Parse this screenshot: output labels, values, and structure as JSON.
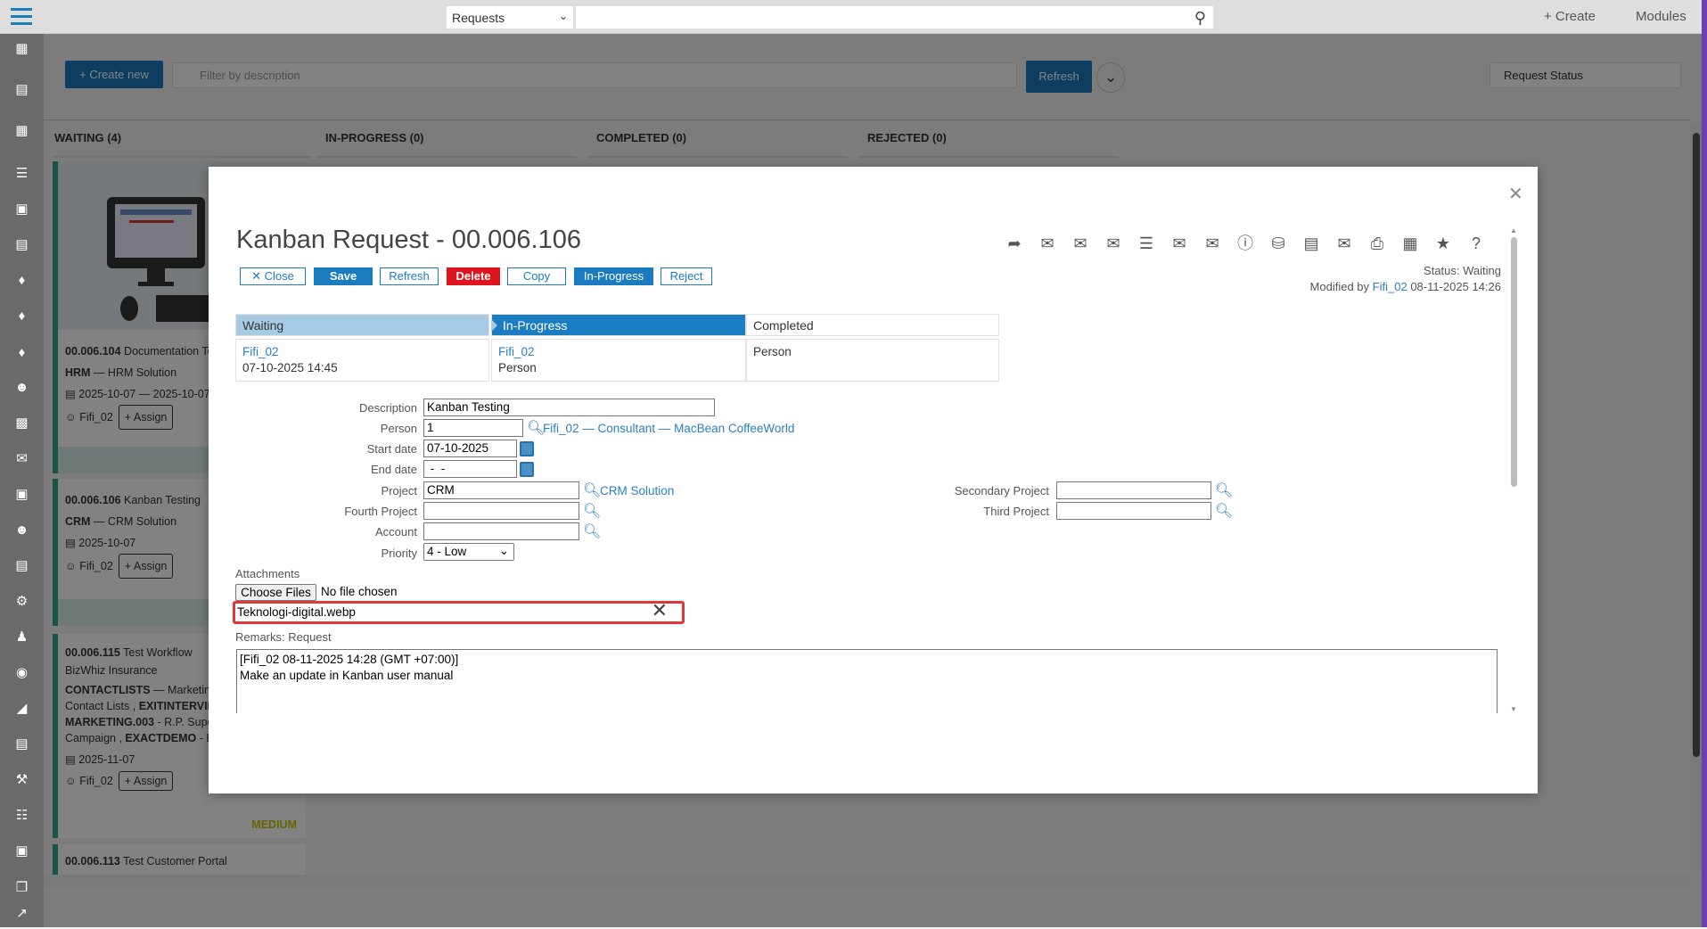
{
  "topbar": {
    "module_select": "Requests",
    "search_placeholder": "",
    "create_label": "+ Create",
    "modules_label": "Modules"
  },
  "sidebar": {
    "icons": [
      "building-icon",
      "layout-icon",
      "grid-icon",
      "checklist-icon",
      "calendar-icon",
      "list-icon",
      "puzzle-icon",
      "puzzle-icon",
      "puzzle-icon",
      "people-icon",
      "briefcase-icon",
      "mail-open-icon",
      "calendar-icon",
      "group-icon",
      "contact-card-icon",
      "gears-icon",
      "people-icon",
      "coins-icon",
      "chart-icon",
      "news-icon",
      "wrench-icon",
      "hierarchy-icon",
      "box-icon",
      "windows-icon",
      "arrow-icon"
    ]
  },
  "board": {
    "create_new": "+ Create new",
    "filter_placeholder": "Filter by description",
    "refresh": "Refresh",
    "status_filter": "Request Status",
    "columns": [
      "WAITING (4)",
      "IN-PROGRESS (0)",
      "COMPLETED (0)",
      "REJECTED (0)"
    ],
    "cards": [
      {
        "id": "00.006.104",
        "title": "Documentation Te",
        "project": "HRM",
        "project_name": "HRM Solution",
        "dates": "2025-10-07 — 2025-10-07",
        "person": "Fifi_02",
        "assign": "+ Assign"
      },
      {
        "id": "00.006.106",
        "title": "Kanban Testing",
        "project": "CRM",
        "project_name": "CRM Solution",
        "dates": "2025-10-07",
        "person": "Fifi_02",
        "assign": "+ Assign"
      },
      {
        "id": "00.006.115",
        "title": "Test Workflow",
        "account": "BizWhiz Insurance",
        "lines": [
          [
            "CONTACTLISTS",
            " — Marketing: "
          ],
          [
            "",
            "Contact Lists , "
          ],
          [
            "EXITINTERVIEW",
            ""
          ],
          [
            "MARKETING.003",
            " - R.P. Super"
          ],
          [
            "",
            "Campaign , "
          ],
          [
            "EXACTDEMO",
            " - Ex"
          ]
        ],
        "dates": "2025-11-07",
        "person": "Fifi_02",
        "assign": "+ Assign",
        "priority": "MEDIUM"
      },
      {
        "id": "00.006.113",
        "title": "Test Customer Portal"
      }
    ]
  },
  "modal": {
    "title": "Kanban Request - 00.006.106",
    "buttons": {
      "close": "Close",
      "save": "Save",
      "refresh": "Refresh",
      "delete": "Delete",
      "copy": "Copy",
      "in_progress": "In-Progress",
      "reject": "Reject"
    },
    "toolbar_icons": [
      "forward-icon",
      "mail-rss-icon",
      "mail-info-icon",
      "mail-open-icon",
      "checklist-icon",
      "mail-stack-icon",
      "mail-attach-icon",
      "info-icon",
      "database-icon",
      "report-icon",
      "mail-send-icon",
      "print-icon",
      "form-add-icon",
      "star-icon",
      "help-icon"
    ],
    "status": "Status: Waiting",
    "modified_prefix": "Modified by",
    "modified_user": "Fifi_02",
    "modified_date": "08-11-2025 14:26",
    "stages": [
      {
        "name": "Waiting",
        "user": "Fifi_02",
        "detail": "07-10-2025 14:45"
      },
      {
        "name": "In-Progress",
        "user": "Fifi_02",
        "detail": "Person"
      },
      {
        "name": "Completed",
        "user": "",
        "detail": "Person"
      }
    ],
    "form": {
      "description_label": "Description",
      "description": "Kanban Testing",
      "person_label": "Person",
      "person": "1",
      "person_link": "Fifi_02 — Consultant — MacBean CoffeeWorld",
      "start_label": "Start date",
      "start": "07-10-2025",
      "end_label": "End date",
      "end": " -  -",
      "project_label": "Project",
      "project": "CRM",
      "project_link": "CRM Solution",
      "fourth_label": "Fourth Project",
      "fourth": "",
      "account_label": "Account",
      "account": "",
      "priority_label": "Priority",
      "priority": "4 - Low",
      "secondary_label": "Secondary Project",
      "secondary": "",
      "third_label": "Third Project",
      "third": ""
    },
    "attachments_label": "Attachments",
    "choose_files": "Choose Files",
    "no_file": "No file chosen",
    "attachment": "Teknologi-digital.webp",
    "remarks_label": "Remarks: Request",
    "remarks_line1": "[Fifi_02 08-11-2025 14:28 (GMT +07:00)]",
    "remarks_line2": "Make an update in Kanban user manual"
  }
}
